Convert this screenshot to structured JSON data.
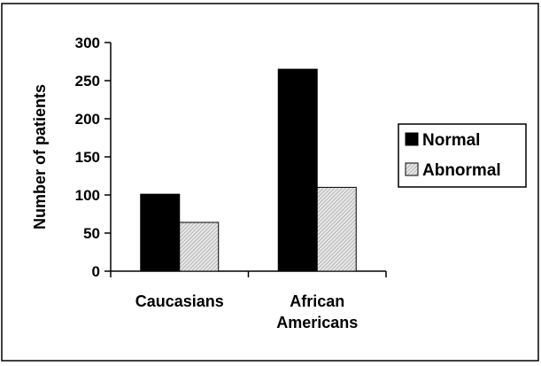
{
  "chart_data": {
    "type": "bar",
    "categories": [
      "Caucasians",
      "African Americans"
    ],
    "category_lines": [
      [
        "Caucasians"
      ],
      [
        "African",
        "Americans"
      ]
    ],
    "series": [
      {
        "name": "Normal",
        "values": [
          101,
          265
        ],
        "color": "#000000",
        "pattern": "solid"
      },
      {
        "name": "Abnormal",
        "values": [
          64,
          110
        ],
        "color": "#d9d9d9",
        "pattern": "hatched"
      }
    ],
    "title": "",
    "xlabel": "",
    "ylabel": "Number of patients",
    "ylim": [
      0,
      300
    ],
    "yticks": [
      0,
      50,
      100,
      150,
      200,
      250,
      300
    ],
    "grid": false,
    "legend_position": "right"
  }
}
